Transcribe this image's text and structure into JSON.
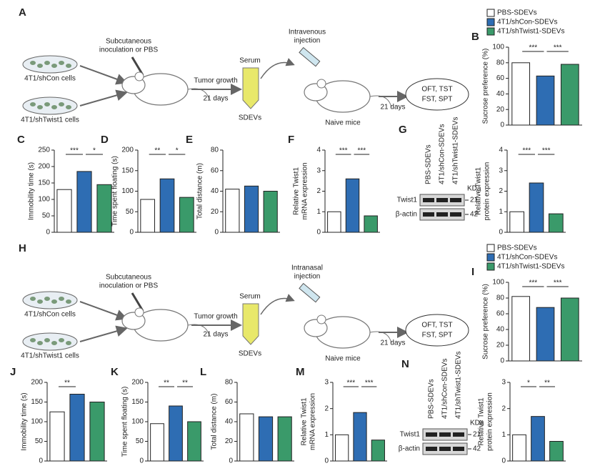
{
  "schematics": [
    {
      "letter": "A",
      "cells": [
        "4T1/shCon cells",
        "4T1/shTwist1 cells"
      ],
      "inoculation": [
        "Subcutaneous",
        "inoculation or PBS"
      ],
      "growth": "Tumor growth",
      "growth_days": "21 days",
      "serum": "Serum",
      "sdevs": "SDEVs",
      "injection": [
        "Intravenous",
        "injection"
      ],
      "naive": "Naive mice",
      "days": "21 days",
      "tests": [
        "OFT, TST",
        "FST, SPT"
      ]
    },
    {
      "letter": "H",
      "cells": [
        "4T1/shCon cells",
        "4T1/shTwist1 cells"
      ],
      "inoculation": [
        "Subcutaneous",
        "inoculation or PBS"
      ],
      "growth": "Tumor growth",
      "growth_days": "21 days",
      "serum": "Serum",
      "sdevs": "SDEVs",
      "injection": [
        "Intranasal",
        "injection"
      ],
      "naive": "Naive mice",
      "days": "21 days",
      "tests": [
        "OFT, TST",
        "FST, SPT"
      ]
    }
  ],
  "blots": [
    {
      "letter": "G",
      "lanes": [
        "PBS-SDEVs",
        "4T1/shCon-SDEVs",
        "4T1/shTwist1-SDEVs"
      ],
      "unit": "KDa",
      "bands": [
        "Twist1",
        "β-actin"
      ],
      "sizes": [
        "21",
        "42"
      ]
    },
    {
      "letter": "N",
      "lanes": [
        "PBS-SDEVs",
        "4T1/shCon-SDEVs",
        "4T1/shTwist1-SDEVs"
      ],
      "unit": "KDa",
      "bands": [
        "Twist1",
        "β-actin"
      ],
      "sizes": [
        "21",
        "42"
      ]
    }
  ],
  "chart_data": [
    {
      "type": "bar",
      "panel": "B",
      "legend": [
        "PBS-SDEVs",
        "4T1/shCon-SDEVs",
        "4T1/shTwist1-SDEVs"
      ],
      "colors": [
        "#ffffff",
        "#2e6db3",
        "#3a9a6a"
      ],
      "ylabel": "Sucrose preference (%)",
      "values": [
        80,
        63,
        78
      ],
      "ylim": [
        0,
        100
      ],
      "yticks": [
        0,
        20,
        40,
        60,
        80,
        100
      ],
      "significance": [
        "***",
        "***"
      ]
    },
    {
      "type": "bar",
      "panel": "C",
      "colors": [
        "#ffffff",
        "#2e6db3",
        "#3a9a6a"
      ],
      "ylabel": "Immobility time (s)",
      "values": [
        130,
        185,
        145
      ],
      "ylim": [
        0,
        250
      ],
      "yticks": [
        0,
        50,
        100,
        150,
        200,
        250
      ],
      "significance": [
        "***",
        "*"
      ]
    },
    {
      "type": "bar",
      "panel": "D",
      "colors": [
        "#ffffff",
        "#2e6db3",
        "#3a9a6a"
      ],
      "ylabel": "Time spent floating (s)",
      "values": [
        80,
        130,
        85
      ],
      "ylim": [
        0,
        200
      ],
      "yticks": [
        0,
        50,
        100,
        150,
        200
      ],
      "significance": [
        "**",
        "*"
      ]
    },
    {
      "type": "bar",
      "panel": "E",
      "colors": [
        "#ffffff",
        "#2e6db3",
        "#3a9a6a"
      ],
      "ylabel": "Total distance (m)",
      "values": [
        42,
        45,
        40
      ],
      "ylim": [
        0,
        80
      ],
      "yticks": [
        0,
        20,
        40,
        60,
        80
      ]
    },
    {
      "type": "bar",
      "panel": "F",
      "colors": [
        "#ffffff",
        "#2e6db3",
        "#3a9a6a"
      ],
      "ylabel": [
        "Relative Twist1",
        "mRNA expression"
      ],
      "values": [
        1.0,
        2.6,
        0.8
      ],
      "ylim": [
        0,
        4
      ],
      "yticks": [
        0,
        1,
        2,
        3,
        4
      ],
      "significance": [
        "***",
        "***"
      ]
    },
    {
      "type": "bar",
      "colors": [
        "#ffffff",
        "#2e6db3",
        "#3a9a6a"
      ],
      "ylabel": [
        "Relative Twist1",
        "protein expression"
      ],
      "values": [
        1.0,
        2.4,
        0.9
      ],
      "ylim": [
        0,
        4
      ],
      "yticks": [
        0,
        1,
        2,
        3,
        4
      ],
      "significance": [
        "***",
        "***"
      ]
    },
    {
      "type": "bar",
      "panel": "I",
      "legend": [
        "PBS-SDEVs",
        "4T1/shCon-SDEVs",
        "4T1/shTwist1-SDEVs"
      ],
      "colors": [
        "#ffffff",
        "#2e6db3",
        "#3a9a6a"
      ],
      "ylabel": "Sucrose preference (%)",
      "values": [
        82,
        68,
        80
      ],
      "ylim": [
        0,
        100
      ],
      "yticks": [
        0,
        20,
        40,
        60,
        80,
        100
      ],
      "significance": [
        "***",
        "***"
      ]
    },
    {
      "type": "bar",
      "panel": "J",
      "colors": [
        "#ffffff",
        "#2e6db3",
        "#3a9a6a"
      ],
      "ylabel": "Immobility time (s)",
      "values": [
        125,
        170,
        150
      ],
      "ylim": [
        0,
        200
      ],
      "yticks": [
        0,
        50,
        100,
        150,
        200
      ],
      "significance": [
        "**",
        null
      ]
    },
    {
      "type": "bar",
      "panel": "K",
      "colors": [
        "#ffffff",
        "#2e6db3",
        "#3a9a6a"
      ],
      "ylabel": "Time spent floating (s)",
      "values": [
        95,
        140,
        100
      ],
      "ylim": [
        0,
        200
      ],
      "yticks": [
        0,
        50,
        100,
        150,
        200
      ],
      "significance": [
        "**",
        "**"
      ]
    },
    {
      "type": "bar",
      "panel": "L",
      "colors": [
        "#ffffff",
        "#2e6db3",
        "#3a9a6a"
      ],
      "ylabel": "Total distance (m)",
      "values": [
        48,
        45,
        45
      ],
      "ylim": [
        0,
        80
      ],
      "yticks": [
        0,
        20,
        40,
        60,
        80
      ]
    },
    {
      "type": "bar",
      "panel": "M",
      "colors": [
        "#ffffff",
        "#2e6db3",
        "#3a9a6a"
      ],
      "ylabel": [
        "Relative Twist1",
        "mRNA expression"
      ],
      "values": [
        1.0,
        1.85,
        0.8
      ],
      "ylim": [
        0,
        3
      ],
      "yticks": [
        0,
        1,
        2,
        3
      ],
      "significance": [
        "***",
        "***"
      ]
    },
    {
      "type": "bar",
      "colors": [
        "#ffffff",
        "#2e6db3",
        "#3a9a6a"
      ],
      "ylabel": [
        "Relative Twist1",
        "protein expression"
      ],
      "values": [
        1.0,
        1.7,
        0.75
      ],
      "ylim": [
        0,
        3
      ],
      "yticks": [
        0,
        1,
        2,
        3
      ],
      "significance": [
        "*",
        "**"
      ]
    }
  ]
}
